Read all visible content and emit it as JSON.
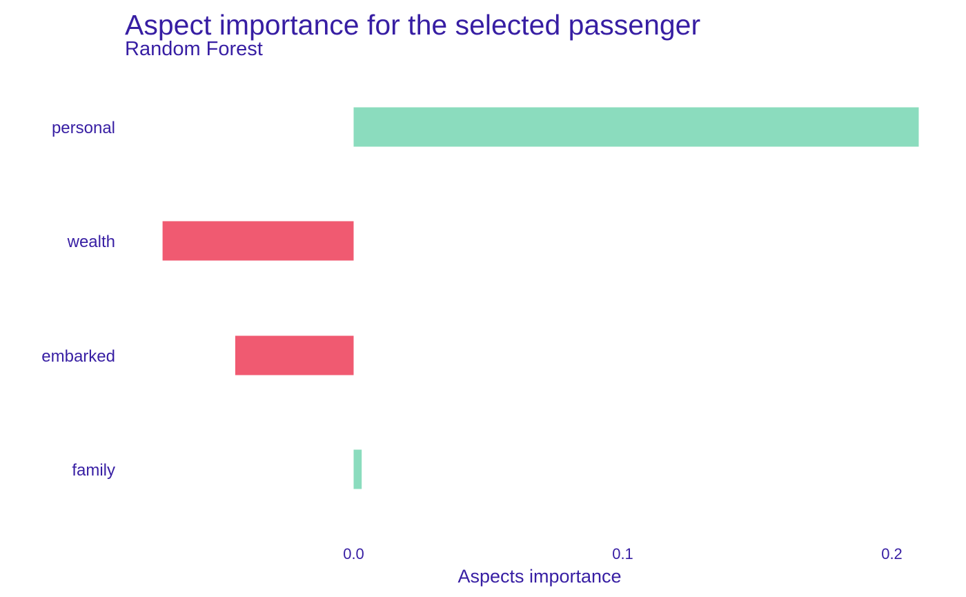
{
  "chart_data": {
    "type": "bar",
    "orientation": "horizontal",
    "title": "Aspect importance for the selected passenger",
    "subtitle": "Random Forest",
    "xlabel": "Aspects importance",
    "ylabel": "",
    "categories": [
      "personal",
      "wealth",
      "embarked",
      "family"
    ],
    "values": [
      0.21,
      -0.071,
      -0.044,
      0.003
    ],
    "xlim": [
      -0.082,
      0.212
    ],
    "x_ticks": [
      0.0,
      0.1,
      0.2
    ],
    "x_tick_labels": [
      "0.0",
      "0.1",
      "0.2"
    ],
    "grid": false,
    "legend": "none",
    "colors": {
      "positive": "#8bdcbe",
      "negative": "#f05a71",
      "text": "#371ea3"
    }
  }
}
